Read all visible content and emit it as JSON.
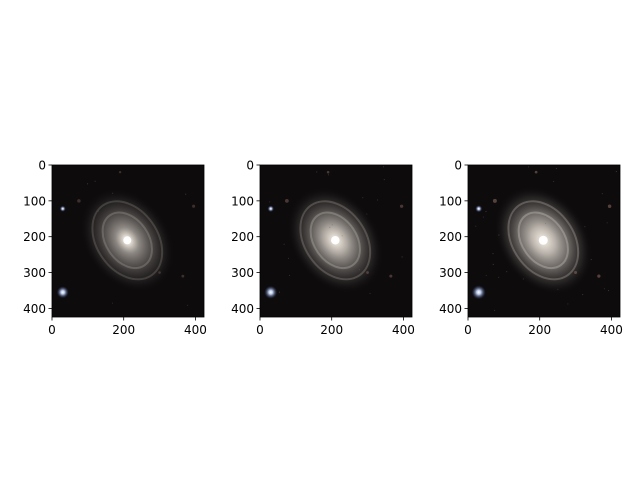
{
  "figure": {
    "background": "#ffffff",
    "panels": [
      {
        "id": "panel-1",
        "content": "galaxy image (least stretched)",
        "x_ticks": [
          "0",
          "200",
          "400"
        ],
        "y_ticks": [
          "0",
          "100",
          "200",
          "300",
          "400"
        ],
        "xlim": [
          0,
          424
        ],
        "ylim": [
          424,
          0
        ],
        "brightness": 1.0
      },
      {
        "id": "panel-2",
        "content": "galaxy image (medium stretch)",
        "x_ticks": [
          "0",
          "200",
          "400"
        ],
        "y_ticks": [
          "0",
          "100",
          "200",
          "300",
          "400"
        ],
        "xlim": [
          0,
          424
        ],
        "ylim": [
          424,
          0
        ],
        "brightness": 1.25
      },
      {
        "id": "panel-3",
        "content": "galaxy image (strongest stretch)",
        "x_ticks": [
          "0",
          "200",
          "400"
        ],
        "y_ticks": [
          "0",
          "100",
          "200",
          "300",
          "400"
        ],
        "xlim": [
          0,
          424
        ],
        "ylim": [
          424,
          0
        ],
        "brightness": 1.5
      }
    ],
    "colors": {
      "sky": "#0d0b0c",
      "galaxy_core": "#fffaf2",
      "galaxy_halo": "#8a8580",
      "star_blue": "#cfe0ff",
      "star_faint": "#7a5a55"
    }
  }
}
